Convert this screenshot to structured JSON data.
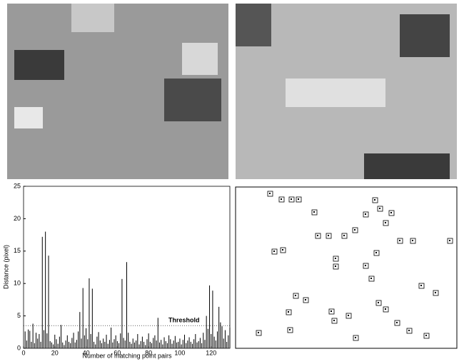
{
  "chart_data": {
    "type": "bar",
    "x_label": "Number of matching point pairs",
    "y_label": "Distance (pixel)",
    "annotation": "Threshold",
    "threshold": 3.5,
    "color": "#000000",
    "x": [
      1,
      2,
      3,
      4,
      5,
      6,
      7,
      8,
      9,
      10,
      11,
      12,
      13,
      14,
      15,
      16,
      17,
      18,
      19,
      20,
      21,
      22,
      23,
      24,
      25,
      26,
      27,
      28,
      29,
      30,
      31,
      32,
      33,
      34,
      35,
      36,
      37,
      38,
      39,
      40,
      41,
      42,
      43,
      44,
      45,
      46,
      47,
      48,
      49,
      50,
      51,
      52,
      53,
      54,
      55,
      56,
      57,
      58,
      59,
      60,
      61,
      62,
      63,
      64,
      65,
      66,
      67,
      68,
      69,
      70,
      71,
      72,
      73,
      74,
      75,
      76,
      77,
      78,
      79,
      80,
      81,
      82,
      83,
      84,
      85,
      86,
      87,
      88,
      89,
      90,
      91,
      92,
      93,
      94,
      95,
      96,
      97,
      98,
      99,
      100,
      101,
      102,
      103,
      104,
      105,
      106,
      107,
      108,
      109,
      110,
      111,
      112,
      113,
      114,
      115,
      116,
      117,
      118,
      119,
      120,
      121,
      122,
      123,
      124,
      125,
      126,
      127,
      128,
      129,
      130,
      131,
      132
    ],
    "values": [
      2.6,
      1.2,
      2.9,
      2.7,
      1.0,
      3.8,
      0.8,
      2.4,
      1.5,
      2.2,
      1.0,
      17.2,
      2.8,
      18.0,
      2.3,
      14.3,
      1.1,
      0.9,
      0.6,
      2.1,
      1.4,
      0.7,
      1.8,
      3.6,
      0.9,
      0.5,
      1.2,
      2.0,
      1.0,
      0.8,
      1.6,
      2.4,
      0.9,
      1.3,
      2.6,
      5.6,
      1.5,
      9.3,
      2.0,
      3.1,
      1.4,
      10.8,
      2.2,
      9.2,
      1.0,
      0.6,
      1.8,
      2.5,
      1.2,
      0.8,
      1.5,
      1.0,
      2.1,
      0.7,
      1.3,
      3.2,
      0.9,
      1.4,
      2.0,
      1.1,
      0.8,
      2.3,
      10.7,
      1.6,
      1.2,
      13.3,
      2.4,
      1.0,
      0.7,
      1.5,
      0.9,
      1.2,
      2.2,
      0.6,
      1.1,
      1.8,
      1.0,
      0.5,
      1.4,
      2.3,
      1.0,
      0.8,
      1.6,
      2.0,
      1.2,
      4.7,
      0.9,
      1.3,
      0.6,
      1.7,
      1.1,
      0.8,
      2.0,
      1.4,
      0.7,
      1.2,
      1.9,
      0.9,
      1.0,
      1.5,
      0.6,
      1.3,
      2.1,
      0.8,
      1.2,
      1.7,
      1.0,
      0.7,
      1.4,
      2.2,
      0.9,
      1.1,
      1.6,
      0.8,
      2.4,
      1.3,
      5.0,
      3.0,
      9.7,
      2.2,
      8.9,
      1.8,
      1.2,
      2.6,
      6.4,
      4.0,
      3.4,
      1.5,
      2.8,
      1.0,
      2.0,
      3.2
    ],
    "xlim": [
      0,
      132
    ],
    "xticks": [
      0,
      20,
      40,
      60,
      80,
      100,
      120
    ],
    "ylim": [
      0,
      25
    ],
    "yticks": [
      0,
      5,
      10,
      15,
      20,
      25
    ]
  }
}
